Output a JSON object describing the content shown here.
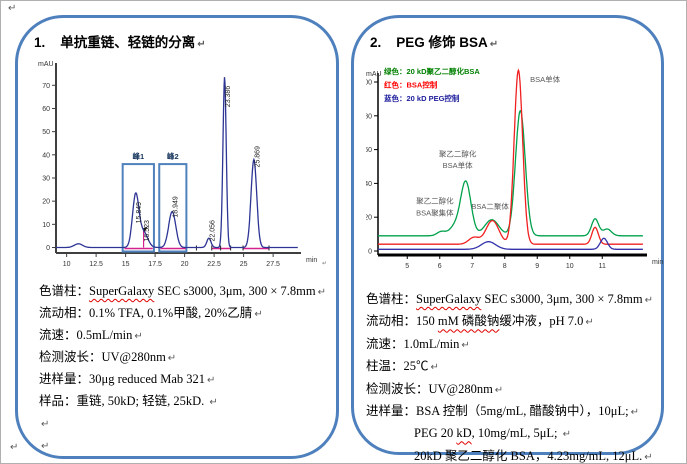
{
  "marks": {
    "pilcrow": "↵"
  },
  "panel1": {
    "number": "1.",
    "title": "单抗重链、轻链的分离",
    "specs": [
      {
        "indent": 0,
        "segs": [
          {
            "t": "色谱柱："
          },
          {
            "t": "SuperGalaxy",
            "sq": true
          },
          {
            "t": " SEC s3000, 3μm, 300  × 7.8mm"
          },
          {
            "t": "↵",
            "p": true
          }
        ]
      },
      {
        "indent": 0,
        "segs": [
          {
            "t": "流动相：0.1% TFA, 0.1%甲酸, 20%乙腈"
          },
          {
            "t": "↵",
            "p": true
          }
        ]
      },
      {
        "indent": 0,
        "segs": [
          {
            "t": "流速：0.5mL/min"
          },
          {
            "t": "↵",
            "p": true
          }
        ]
      },
      {
        "indent": 0,
        "segs": [
          {
            "t": "检测波长：UV@280nm"
          },
          {
            "t": "↵",
            "p": true
          }
        ]
      },
      {
        "indent": 0,
        "segs": [
          {
            "t": "进样量：30μg reduced Mab 321"
          },
          {
            "t": "↵",
            "p": true
          }
        ]
      },
      {
        "indent": 0,
        "segs": [
          {
            "t": "样品：重链, 50kD; 轻链, 25kD. "
          },
          {
            "t": "↵",
            "p": true
          }
        ]
      },
      {
        "indent": 0,
        "segs": [
          {
            "t": "↵",
            "p": true
          }
        ]
      },
      {
        "indent": 0,
        "segs": [
          {
            "t": "↵",
            "p": true
          }
        ]
      }
    ]
  },
  "panel2": {
    "number": "2.",
    "title": "PEG 修饰 BSA",
    "specs": [
      {
        "indent": 0,
        "segs": [
          {
            "t": "色谱柱："
          },
          {
            "t": "SuperGalaxy",
            "sq": true
          },
          {
            "t": " SEC s3000, 3μm, 300  × 7.8mm"
          },
          {
            "t": "↵",
            "p": true
          }
        ]
      },
      {
        "indent": 0,
        "segs": [
          {
            "t": "流动相：150 "
          },
          {
            "t": "mM 磷酸钠",
            "sq": true
          },
          {
            "t": "缓冲液，pH 7.0"
          },
          {
            "t": "↵",
            "p": true
          }
        ]
      },
      {
        "indent": 0,
        "segs": [
          {
            "t": "流速：1.0mL/min"
          },
          {
            "t": "↵",
            "p": true
          }
        ]
      },
      {
        "indent": 0,
        "segs": [
          {
            "t": "柱温：25℃"
          },
          {
            "t": "↵",
            "p": true
          }
        ]
      },
      {
        "indent": 0,
        "segs": [
          {
            "t": "检测波长：UV@280nm"
          },
          {
            "t": "↵",
            "p": true
          }
        ]
      },
      {
        "indent": 0,
        "segs": [
          {
            "t": "进样量：BSA 控制（5mg/mL, 醋酸钠中），10μL;"
          },
          {
            "t": "↵",
            "p": true
          }
        ]
      },
      {
        "indent": 1,
        "segs": [
          {
            "t": "PEG 20 "
          },
          {
            "t": "kD",
            "sq": true
          },
          {
            "t": ", 10mg/mL, 5μL; "
          },
          {
            "t": "↵",
            "p": true
          }
        ]
      },
      {
        "indent": 1,
        "segs": [
          {
            "t": "20kD 聚乙二醇化 BSA，4.23mg/mL, 12μL."
          },
          {
            "t": "↵",
            "p": true
          }
        ]
      }
    ]
  },
  "chart_data": [
    {
      "type": "line",
      "xlabel": "min",
      "ylabel": "mAU",
      "xlim": [
        9.1,
        29.8
      ],
      "ylim": [
        0,
        75
      ],
      "x_ticks": [
        10,
        12.5,
        15,
        17.5,
        20,
        22.5,
        25,
        27.5
      ],
      "y_ticks": [
        0,
        10,
        20,
        30,
        40,
        50,
        60,
        70
      ],
      "series": [
        {
          "name": "UV@280nm",
          "color": "#2d3494",
          "baseline": 0,
          "peaks": [
            {
              "center": 11.0,
              "height": 1.6,
              "sigma": 0.35
            },
            {
              "center": 15.849,
              "height": 22.5,
              "sigma": 0.27,
              "label": "15.849",
              "ldy": 28
            },
            {
              "center": 16.523,
              "height": 6.5,
              "sigma": 0.35,
              "label": "16.523",
              "ldy": 60
            },
            {
              "center": 18.949,
              "height": 15.5,
              "sigma": 0.3,
              "label": "18.949",
              "ldy": 6
            },
            {
              "center": 22.056,
              "height": 4.0,
              "sigma": 0.18,
              "label": "22.056",
              "ldy": 60
            },
            {
              "center": 23.386,
              "height": 73.5,
              "sigma": 0.14,
              "label": "23.386",
              "ldy": 30
            },
            {
              "center": 25.869,
              "height": 38.0,
              "sigma": 0.24,
              "label": "25.869",
              "ldy": 8
            }
          ]
        }
      ],
      "peak_boxes": [
        {
          "label": "峰1",
          "x0": 14.75,
          "x1": 17.4,
          "top": 36
        },
        {
          "label": "峰2",
          "x0": 17.85,
          "x1": 20.15,
          "top": 36
        }
      ],
      "integration": {
        "color": "#d4218c",
        "segments": [
          [
            14.9,
            17.3
          ],
          [
            17.95,
            20.1
          ],
          [
            22.3,
            23.9
          ],
          [
            24.95,
            27.15
          ]
        ],
        "drop_lines": [
          16.523
        ],
        "marker": {
          "x": 16.45,
          "y": 8.2
        }
      },
      "baseline_ticks": [
        21.0,
        22.3,
        23.05,
        23.9,
        24.95,
        27.15
      ]
    },
    {
      "type": "line",
      "xlabel": "min",
      "ylabel": "mAU",
      "xlim": [
        4.1,
        12.25
      ],
      "ylim": [
        0,
        112
      ],
      "x_ticks": [
        5,
        6,
        7,
        8,
        9,
        10,
        11
      ],
      "y_ticks": [
        0,
        20,
        40,
        60,
        80,
        100
      ],
      "legend": [
        {
          "label": "绿色：20 kD聚乙二醇化BSA",
          "color": "#008000"
        },
        {
          "label": "红色：BSA控制",
          "color": "#ff0000"
        },
        {
          "label": "蓝色：20 kD PEG控制",
          "color": "#1c1c9c"
        }
      ],
      "series": [
        {
          "name": "20 kD聚乙二醇化BSA",
          "color": "#00a14b",
          "baseline": 9,
          "peaks": [
            {
              "center": 6.05,
              "height": 2.5,
              "sigma": 0.13
            },
            {
              "center": 6.45,
              "height": 5.0,
              "sigma": 0.16
            },
            {
              "center": 6.8,
              "height": 32,
              "sigma": 0.16
            },
            {
              "center": 7.6,
              "height": 9.5,
              "sigma": 0.22
            },
            {
              "center": 8.48,
              "height": 74,
              "sigma": 0.15
            },
            {
              "center": 10.78,
              "height": 10,
              "sigma": 0.11
            },
            {
              "center": 11.15,
              "height": 4,
              "sigma": 0.13
            }
          ]
        },
        {
          "name": "BSA控制",
          "color": "#f02020",
          "baseline": 4,
          "peaks": [
            {
              "center": 7.05,
              "height": 4,
              "sigma": 0.16
            },
            {
              "center": 7.62,
              "height": 14,
              "sigma": 0.2
            },
            {
              "center": 8.42,
              "height": 103,
              "sigma": 0.13
            },
            {
              "center": 10.78,
              "height": 10,
              "sigma": 0.1
            }
          ]
        },
        {
          "name": "20 kD PEG控制",
          "color": "#3333aa",
          "baseline": 1,
          "peaks": [
            {
              "center": 7.5,
              "height": 4.5,
              "sigma": 0.22
            },
            {
              "center": 11.05,
              "height": 6.5,
              "sigma": 0.11
            }
          ]
        }
      ],
      "annotations": [
        {
          "text": "BSA单体",
          "x": 8.78,
          "y": 100,
          "anchor": "start"
        },
        {
          "text": "聚乙二醇化",
          "x": 6.55,
          "y": 56
        },
        {
          "text": "BSA单体",
          "x": 6.55,
          "y": 49
        },
        {
          "text": "聚乙二醇化",
          "x": 5.85,
          "y": 28
        },
        {
          "text": "BSA聚集体",
          "x": 5.85,
          "y": 21
        },
        {
          "text": "BSA二聚体",
          "x": 7.55,
          "y": 25
        }
      ]
    }
  ]
}
